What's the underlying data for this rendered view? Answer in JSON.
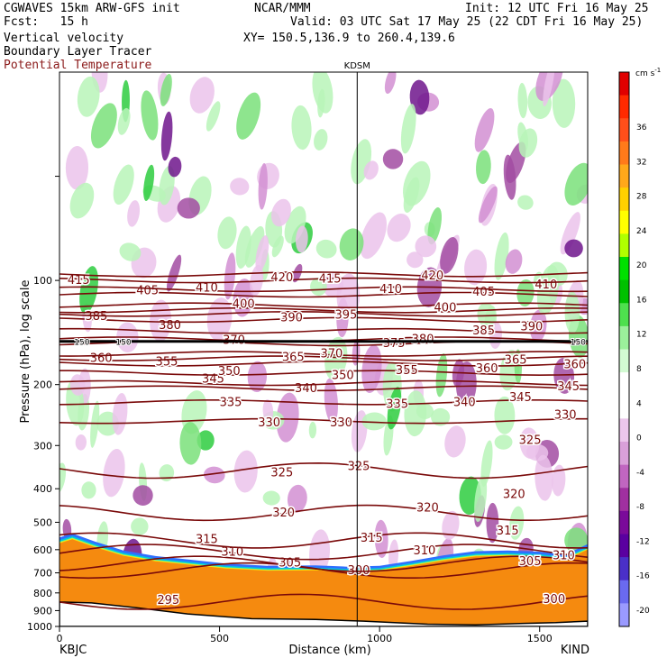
{
  "header": {
    "model_line": "CGWAVES 15km ARW-GFS init",
    "org": "NCAR/MMM",
    "init": "Init: 12 UTC Fri 16 May 25",
    "fcst": "Fcst:   15 h",
    "valid": "Valid: 03 UTC Sat 17 May 25 (22 CDT Fri 16 May 25)",
    "field1": "Vertical velocity",
    "field2": "Boundary Layer Tracer",
    "field3": "Potential Temperature",
    "xy": "XY= 150.5,136.9 to 260.4,139.6"
  },
  "colors": {
    "theta": "#7a0a0a",
    "field3": "#8b1a1a",
    "terrain": "#f58a0f"
  },
  "chart_data": {
    "type": "heatmap",
    "title": "",
    "xlabel": "Distance (km)",
    "ylabel": "Pressure (hPa), log scale",
    "xlim": [
      0,
      1650
    ],
    "ylim": [
      1000,
      25
    ],
    "yscale": "log",
    "x_ticks": [
      0,
      500,
      1000,
      1500
    ],
    "y_ticks": [
      100,
      200,
      300,
      400,
      500,
      600,
      700,
      800,
      900,
      1000
    ],
    "endpoints": {
      "left": "KBJC",
      "right": "KIND"
    },
    "marker": {
      "label": "KDSM",
      "x": 930
    },
    "tropopause_pressure": 150,
    "tropopause_labels": [
      "150",
      "150",
      "150"
    ],
    "colorbar": {
      "unit": "cm s",
      "unit_exp": "-1",
      "ticks": [
        36,
        32,
        28,
        24,
        20,
        16,
        12,
        8,
        4,
        0,
        -4,
        -8,
        -12,
        -16,
        -20
      ],
      "colors": [
        "#e00000",
        "#ff2a00",
        "#ff4f1a",
        "#ff7a1a",
        "#ffa81a",
        "#ffd000",
        "#ffff00",
        "#b0ff00",
        "#00e000",
        "#00c000",
        "#4ee04e",
        "#9bf09b",
        "#d2fad2",
        "#ffffff",
        "#ffffff",
        "#ecc6ec",
        "#d9a0d9",
        "#c066c0",
        "#a030a0",
        "#7a0a9a",
        "#5a00a0",
        "#4a30c8",
        "#6a6af0",
        "#9a9aff"
      ]
    },
    "theta_contours": [
      {
        "value": 295,
        "p": 850,
        "labels": [
          {
            "x": 340,
            "p": 840
          }
        ]
      },
      {
        "value": 300,
        "p": 690,
        "labels": [
          {
            "x": 935,
            "p": 690
          },
          {
            "x": 1545,
            "p": 835
          }
        ]
      },
      {
        "value": 305,
        "p": 660,
        "labels": [
          {
            "x": 720,
            "p": 655
          },
          {
            "x": 1470,
            "p": 650
          }
        ]
      },
      {
        "value": 310,
        "p": 610,
        "labels": [
          {
            "x": 540,
            "p": 610
          },
          {
            "x": 1140,
            "p": 605
          },
          {
            "x": 1575,
            "p": 625
          }
        ]
      },
      {
        "value": 315,
        "p": 565,
        "labels": [
          {
            "x": 460,
            "p": 560
          },
          {
            "x": 975,
            "p": 555
          },
          {
            "x": 1400,
            "p": 530
          }
        ]
      },
      {
        "value": 320,
        "p": 470,
        "labels": [
          {
            "x": 700,
            "p": 470
          },
          {
            "x": 1150,
            "p": 455
          },
          {
            "x": 1420,
            "p": 415
          }
        ]
      },
      {
        "value": 325,
        "p": 355,
        "labels": [
          {
            "x": 695,
            "p": 360
          },
          {
            "x": 935,
            "p": 345
          },
          {
            "x": 1470,
            "p": 290
          }
        ]
      },
      {
        "value": 330,
        "p": 255,
        "labels": [
          {
            "x": 655,
            "p": 258
          },
          {
            "x": 880,
            "p": 258
          },
          {
            "x": 1580,
            "p": 245
          }
        ]
      },
      {
        "value": 335,
        "p": 225,
        "labels": [
          {
            "x": 535,
            "p": 225
          },
          {
            "x": 1055,
            "p": 228
          }
        ]
      },
      {
        "value": 340,
        "p": 205,
        "labels": [
          {
            "x": 770,
            "p": 205
          },
          {
            "x": 1265,
            "p": 225
          }
        ]
      },
      {
        "value": 345,
        "p": 198,
        "labels": [
          {
            "x": 480,
            "p": 193
          },
          {
            "x": 1440,
            "p": 218
          },
          {
            "x": 1590,
            "p": 203
          }
        ]
      },
      {
        "value": 350,
        "p": 185,
        "labels": [
          {
            "x": 530,
            "p": 183
          },
          {
            "x": 885,
            "p": 188
          }
        ]
      },
      {
        "value": 355,
        "p": 174,
        "labels": [
          {
            "x": 335,
            "p": 172
          },
          {
            "x": 1085,
            "p": 182
          }
        ]
      },
      {
        "value": 360,
        "p": 168,
        "labels": [
          {
            "x": 130,
            "p": 168
          },
          {
            "x": 1335,
            "p": 180
          },
          {
            "x": 1610,
            "p": 175
          }
        ]
      },
      {
        "value": 365,
        "p": 163,
        "labels": [
          {
            "x": 730,
            "p": 167
          },
          {
            "x": 1425,
            "p": 170
          }
        ]
      },
      {
        "value": 370,
        "p": 152,
        "labels": [
          {
            "x": 545,
            "p": 149
          },
          {
            "x": 850,
            "p": 163
          }
        ]
      },
      {
        "value": 375,
        "p": 148,
        "labels": [
          {
            "x": 1045,
            "p": 152
          }
        ]
      },
      {
        "value": 380,
        "p": 140,
        "labels": [
          {
            "x": 345,
            "p": 135
          },
          {
            "x": 1135,
            "p": 148
          }
        ]
      },
      {
        "value": 385,
        "p": 130,
        "labels": [
          {
            "x": 115,
            "p": 127
          },
          {
            "x": 1325,
            "p": 140
          }
        ]
      },
      {
        "value": 390,
        "p": 125,
        "labels": [
          {
            "x": 725,
            "p": 128
          },
          {
            "x": 1475,
            "p": 136
          }
        ]
      },
      {
        "value": 395,
        "p": 122,
        "labels": [
          {
            "x": 895,
            "p": 126
          }
        ]
      },
      {
        "value": 400,
        "p": 118,
        "labels": [
          {
            "x": 575,
            "p": 117
          },
          {
            "x": 1205,
            "p": 120
          }
        ]
      },
      {
        "value": 405,
        "p": 110,
        "labels": [
          {
            "x": 275,
            "p": 107
          },
          {
            "x": 1325,
            "p": 108
          }
        ]
      },
      {
        "value": 410,
        "p": 106,
        "labels": [
          {
            "x": 460,
            "p": 105
          },
          {
            "x": 1035,
            "p": 106
          },
          {
            "x": 1520,
            "p": 103
          }
        ]
      },
      {
        "value": 415,
        "p": 100,
        "labels": [
          {
            "x": 60,
            "p": 100
          },
          {
            "x": 845,
            "p": 99
          }
        ]
      },
      {
        "value": 420,
        "p": 96,
        "labels": [
          {
            "x": 695,
            "p": 98
          },
          {
            "x": 1165,
            "p": 97
          }
        ]
      }
    ]
  }
}
